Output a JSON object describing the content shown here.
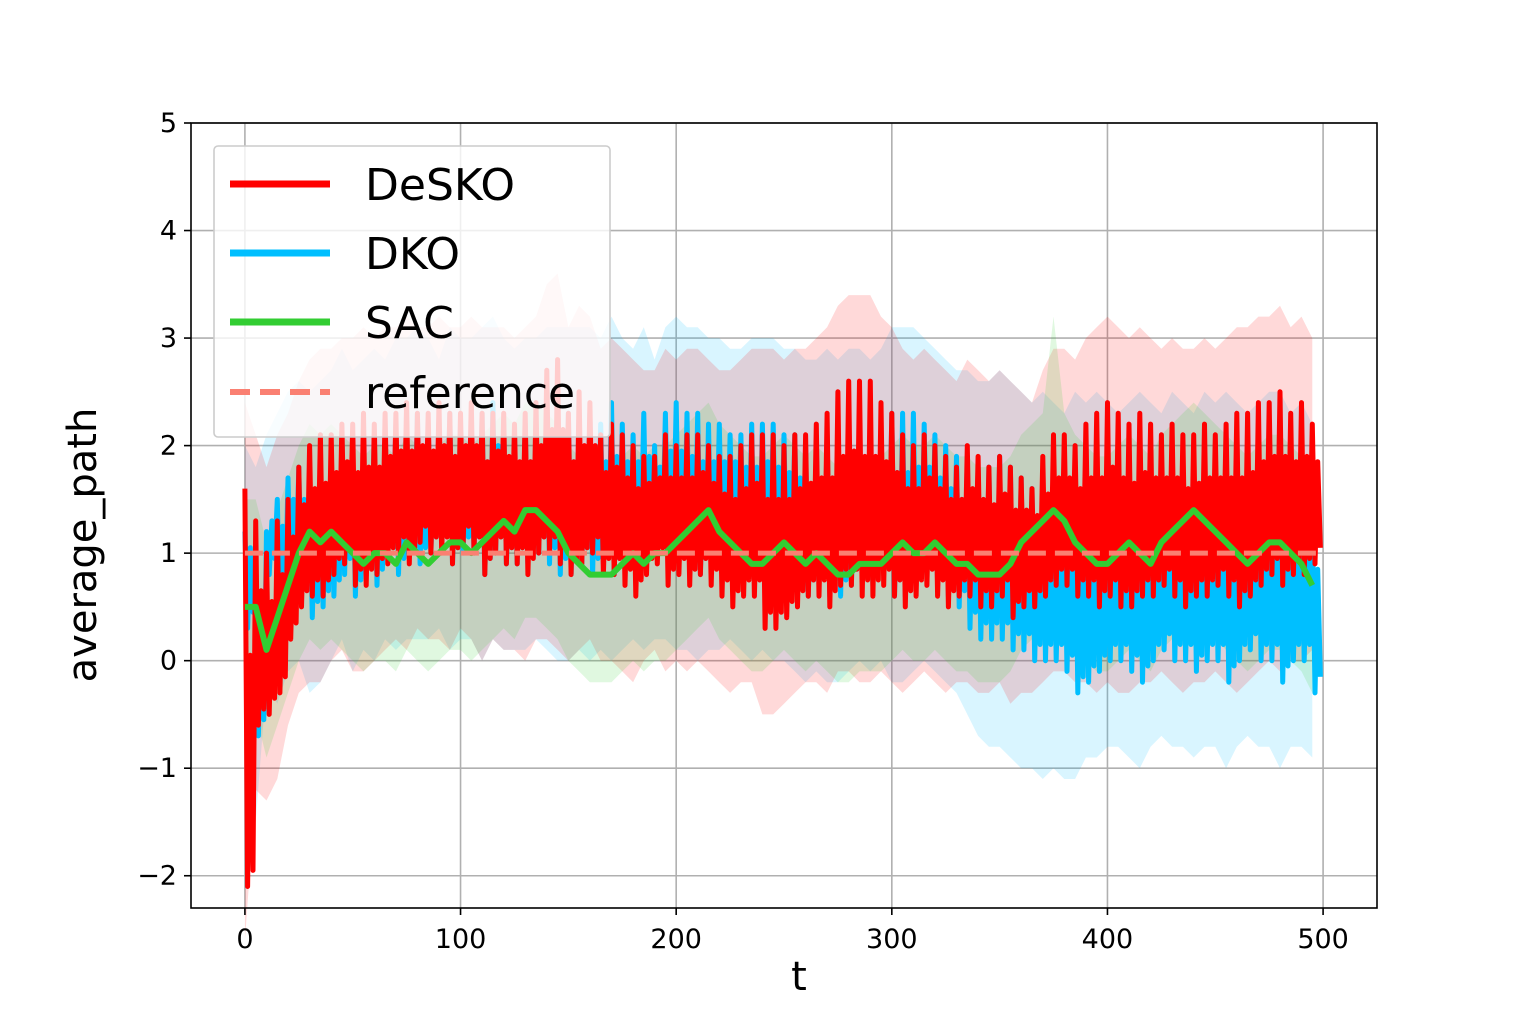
{
  "chart_data": {
    "type": "line",
    "xlabel": "t",
    "ylabel": "average_path",
    "xlim": [
      -25,
      525
    ],
    "ylim": [
      -2.3,
      5
    ],
    "xticks": [
      0,
      100,
      200,
      300,
      400,
      500
    ],
    "xtick_labels": [
      "0",
      "100",
      "200",
      "300",
      "400",
      "500"
    ],
    "yticks": [
      -2,
      -1,
      0,
      1,
      2,
      3,
      4,
      5
    ],
    "ytick_labels": [
      "−2",
      "−1",
      "0",
      "1",
      "2",
      "3",
      "4",
      "5"
    ],
    "grid": true,
    "legend_position": "top-left",
    "legend": [
      "DeSKO",
      "DKO",
      "SAC",
      "reference"
    ],
    "series": [
      {
        "name": "DKO",
        "color": "#00bfff",
        "x_step": 5,
        "mean_lo": [
          0.3,
          -0.7,
          0.8,
          0.4,
          0.7,
          0.6,
          0.4,
          0.5,
          0.6,
          0.8,
          0.6,
          0.9,
          0.7,
          1.0,
          0.8,
          1.0,
          0.9,
          1.0,
          1.1,
          0.9,
          1.0,
          1.0,
          0.8,
          1.0,
          0.9,
          0.9,
          0.9,
          1.0,
          0.9,
          0.8,
          0.8,
          0.9,
          0.8,
          0.9,
          0.8,
          0.9,
          1.0,
          0.9,
          1.0,
          1.0,
          0.9,
          0.9,
          0.8,
          0.9,
          0.9,
          1.0,
          0.9,
          0.8,
          0.9,
          0.8,
          0.8,
          0.7,
          0.6,
          0.7,
          0.6,
          0.6,
          0.7,
          0.8,
          0.7,
          0.8,
          0.6,
          0.6,
          0.7,
          0.8,
          0.7,
          0.6,
          0.5,
          0.3,
          0.2,
          0.2,
          0.2,
          0.1,
          0.1,
          0.0,
          0.0,
          0.0,
          -0.1,
          -0.3,
          -0.2,
          -0.1,
          0.0,
          0.0,
          -0.1,
          -0.2,
          0.0,
          0.1,
          0.0,
          0.0,
          -0.1,
          0.0,
          0.0,
          -0.2,
          0.0,
          0.1,
          0.0,
          0.0,
          -0.2,
          0.0,
          0.0,
          -0.3
        ],
        "mean_hi": [
          1.2,
          1.0,
          1.2,
          1.5,
          1.7,
          1.8,
          1.7,
          1.8,
          1.9,
          2.1,
          1.9,
          2.0,
          2.1,
          2.0,
          2.2,
          2.2,
          2.3,
          2.2,
          2.0,
          2.3,
          2.2,
          2.2,
          2.3,
          2.4,
          2.2,
          2.1,
          2.2,
          2.2,
          2.3,
          2.3,
          2.3,
          2.3,
          2.3,
          2.2,
          2.4,
          2.2,
          2.1,
          2.3,
          2.0,
          2.3,
          2.4,
          2.3,
          2.3,
          2.2,
          2.2,
          2.1,
          2.1,
          2.2,
          2.2,
          2.2,
          2.1,
          2.1,
          2.0,
          2.0,
          2.1,
          2.0,
          2.1,
          2.1,
          2.0,
          2.1,
          2.3,
          2.3,
          2.3,
          2.2,
          2.1,
          2.0,
          1.9,
          1.9,
          1.8,
          1.8,
          1.9,
          1.8,
          1.7,
          1.6,
          1.7,
          1.6,
          1.5,
          1.7,
          1.6,
          1.7,
          1.6,
          1.5,
          1.6,
          1.7,
          1.6,
          1.5,
          1.7,
          1.6,
          1.5,
          1.7,
          1.6,
          1.7,
          1.6,
          1.5,
          1.6,
          1.7,
          1.7,
          1.5,
          1.6,
          1.4
        ],
        "band_lo": [
          -0.8,
          -1.5,
          -0.2,
          -0.4,
          -0.1,
          0.0,
          -0.3,
          -0.2,
          0.0,
          0.2,
          -0.1,
          0.1,
          0.0,
          0.2,
          0.1,
          0.2,
          0.2,
          0.2,
          0.3,
          0.1,
          0.2,
          0.2,
          0.0,
          0.2,
          0.1,
          0.1,
          0.1,
          0.2,
          0.1,
          0.0,
          0.0,
          0.1,
          0.0,
          0.1,
          0.0,
          0.1,
          0.2,
          0.1,
          0.2,
          0.2,
          0.1,
          0.1,
          0.0,
          0.1,
          0.1,
          0.2,
          0.1,
          0.0,
          0.1,
          0.0,
          0.0,
          -0.1,
          -0.2,
          -0.1,
          -0.2,
          -0.2,
          -0.1,
          0.0,
          -0.1,
          0.0,
          -0.2,
          -0.2,
          -0.1,
          0.0,
          -0.1,
          -0.2,
          -0.3,
          -0.5,
          -0.7,
          -0.8,
          -0.8,
          -0.9,
          -1.0,
          -1.0,
          -1.1,
          -1.0,
          -1.1,
          -1.1,
          -0.9,
          -0.9,
          -0.8,
          -0.8,
          -0.9,
          -1.0,
          -0.8,
          -0.7,
          -0.8,
          -0.8,
          -0.9,
          -0.8,
          -0.8,
          -1.0,
          -0.8,
          -0.7,
          -0.8,
          -0.8,
          -1.0,
          -0.8,
          -0.8,
          -0.9
        ],
        "band_hi": [
          2.0,
          1.8,
          2.1,
          2.3,
          2.5,
          2.6,
          2.5,
          2.6,
          2.7,
          2.9,
          2.7,
          2.8,
          2.9,
          2.8,
          3.0,
          3.0,
          3.1,
          3.0,
          2.8,
          3.1,
          3.0,
          3.0,
          3.1,
          3.2,
          3.0,
          2.9,
          3.0,
          3.0,
          3.1,
          3.1,
          3.1,
          3.1,
          3.1,
          3.0,
          3.2,
          3.0,
          2.9,
          3.1,
          2.8,
          3.1,
          3.2,
          3.1,
          3.1,
          3.0,
          3.0,
          2.9,
          2.9,
          3.0,
          3.0,
          3.0,
          2.9,
          2.9,
          2.8,
          2.8,
          2.9,
          2.8,
          2.9,
          2.9,
          2.8,
          2.9,
          3.1,
          3.1,
          3.1,
          3.0,
          2.9,
          2.8,
          2.7,
          2.7,
          2.6,
          2.6,
          2.7,
          2.6,
          2.5,
          2.4,
          2.5,
          2.4,
          2.3,
          2.5,
          2.4,
          2.5,
          2.4,
          2.3,
          2.4,
          2.5,
          2.4,
          2.3,
          2.5,
          2.4,
          2.3,
          2.5,
          2.4,
          2.5,
          2.4,
          2.3,
          2.4,
          2.5,
          2.5,
          2.3,
          2.4,
          2.2
        ]
      },
      {
        "name": "DeSKO",
        "color": "#ff0000",
        "x_step": 5,
        "mean_lo": [
          -2.1,
          -0.6,
          -0.5,
          -0.3,
          0.2,
          0.5,
          0.6,
          0.6,
          0.8,
          0.9,
          0.7,
          0.7,
          0.8,
          0.9,
          1.0,
          0.9,
          1.1,
          1.0,
          1.0,
          0.9,
          1.1,
          1.0,
          0.8,
          1.0,
          0.9,
          0.9,
          0.8,
          1.0,
          1.0,
          0.9,
          0.8,
          0.9,
          1.0,
          0.8,
          0.8,
          0.7,
          0.6,
          0.8,
          0.9,
          0.7,
          0.8,
          0.7,
          0.8,
          0.7,
          0.6,
          0.5,
          0.6,
          0.6,
          0.3,
          0.3,
          0.4,
          0.5,
          0.6,
          0.6,
          0.5,
          0.7,
          0.7,
          0.6,
          0.6,
          0.7,
          0.6,
          0.5,
          0.6,
          0.7,
          0.6,
          0.5,
          0.6,
          0.6,
          0.5,
          0.5,
          0.6,
          0.4,
          0.5,
          0.5,
          0.6,
          0.7,
          0.7,
          0.6,
          0.6,
          0.5,
          0.6,
          0.5,
          0.5,
          0.6,
          0.6,
          0.7,
          0.6,
          0.5,
          0.6,
          0.6,
          0.7,
          0.6,
          0.5,
          0.6,
          0.7,
          0.8,
          0.7,
          0.8,
          0.8,
          0.9
        ],
        "mean_hi": [
          1.6,
          1.3,
          1.0,
          1.3,
          1.5,
          1.8,
          2.0,
          2.1,
          2.1,
          2.2,
          2.2,
          2.3,
          2.2,
          2.3,
          2.3,
          2.4,
          2.3,
          2.3,
          2.4,
          2.3,
          2.3,
          2.4,
          2.3,
          2.3,
          2.3,
          2.2,
          2.3,
          2.4,
          2.7,
          2.8,
          2.3,
          2.5,
          2.4,
          2.1,
          2.2,
          2.1,
          2.0,
          1.9,
          1.9,
          2.1,
          2.0,
          2.1,
          2.1,
          2.0,
          1.9,
          1.9,
          2.0,
          2.1,
          2.1,
          2.1,
          2.0,
          2.1,
          2.1,
          2.2,
          2.3,
          2.5,
          2.6,
          2.6,
          2.6,
          2.4,
          2.3,
          2.1,
          2.0,
          2.1,
          2.0,
          1.9,
          1.8,
          2.0,
          1.9,
          1.8,
          1.9,
          1.8,
          1.7,
          1.6,
          1.9,
          2.1,
          2.1,
          2.0,
          2.2,
          2.3,
          2.4,
          2.3,
          2.2,
          2.3,
          2.2,
          2.1,
          2.2,
          2.1,
          2.1,
          2.2,
          2.1,
          2.2,
          2.3,
          2.3,
          2.4,
          2.4,
          2.5,
          2.3,
          2.4,
          2.2
        ],
        "band_lo": [
          -2.6,
          -1.2,
          -1.3,
          -1.1,
          -0.6,
          -0.3,
          -0.2,
          -0.2,
          0.0,
          0.1,
          -0.1,
          -0.1,
          0.0,
          0.1,
          0.2,
          0.1,
          0.3,
          0.2,
          0.2,
          0.1,
          0.3,
          0.2,
          0.0,
          0.2,
          0.1,
          0.1,
          0.0,
          0.2,
          0.2,
          0.1,
          0.0,
          0.1,
          0.2,
          0.0,
          0.0,
          -0.1,
          -0.2,
          0.0,
          0.1,
          -0.1,
          0.0,
          -0.1,
          0.0,
          -0.1,
          -0.2,
          -0.3,
          -0.2,
          -0.2,
          -0.5,
          -0.5,
          -0.4,
          -0.3,
          -0.2,
          -0.2,
          -0.3,
          -0.1,
          -0.1,
          -0.2,
          -0.2,
          -0.1,
          -0.2,
          -0.3,
          -0.2,
          -0.1,
          -0.2,
          -0.3,
          -0.2,
          -0.2,
          -0.3,
          -0.3,
          -0.2,
          -0.4,
          -0.3,
          -0.3,
          -0.2,
          -0.1,
          -0.1,
          -0.2,
          -0.2,
          -0.3,
          -0.2,
          -0.3,
          -0.3,
          -0.2,
          -0.2,
          -0.1,
          -0.2,
          -0.3,
          -0.2,
          -0.2,
          -0.1,
          -0.2,
          -0.3,
          -0.2,
          -0.1,
          0.0,
          -0.1,
          0.0,
          0.0,
          0.1
        ],
        "band_hi": [
          2.4,
          2.1,
          1.8,
          2.1,
          2.3,
          2.6,
          2.8,
          2.9,
          2.9,
          3.0,
          3.0,
          3.1,
          3.0,
          3.1,
          3.1,
          3.2,
          3.1,
          3.1,
          3.2,
          3.1,
          3.1,
          3.2,
          3.1,
          3.1,
          3.1,
          3.0,
          3.1,
          3.2,
          3.5,
          3.6,
          3.1,
          3.3,
          3.2,
          2.9,
          3.0,
          2.9,
          2.8,
          2.7,
          2.7,
          2.9,
          2.8,
          2.9,
          2.9,
          2.8,
          2.7,
          2.7,
          2.8,
          2.9,
          2.9,
          2.9,
          2.8,
          2.9,
          2.9,
          3.0,
          3.1,
          3.3,
          3.4,
          3.4,
          3.4,
          3.2,
          3.1,
          2.9,
          2.8,
          2.9,
          2.8,
          2.7,
          2.6,
          2.8,
          2.7,
          2.6,
          2.7,
          2.6,
          2.5,
          2.4,
          2.7,
          2.9,
          2.9,
          2.8,
          3.0,
          3.1,
          3.2,
          3.1,
          3.0,
          3.1,
          3.0,
          2.9,
          3.0,
          2.9,
          2.9,
          3.0,
          2.9,
          3.0,
          3.1,
          3.1,
          3.2,
          3.2,
          3.3,
          3.1,
          3.2,
          3.0
        ]
      },
      {
        "name": "SAC",
        "color": "#32cd32",
        "x_step": 5,
        "values": [
          0.5,
          0.5,
          0.1,
          0.4,
          0.7,
          1.0,
          1.2,
          1.1,
          1.2,
          1.1,
          1.0,
          0.9,
          1.0,
          1.0,
          0.9,
          1.1,
          1.0,
          0.9,
          1.0,
          1.1,
          1.1,
          1.0,
          1.1,
          1.2,
          1.3,
          1.2,
          1.4,
          1.4,
          1.3,
          1.2,
          1.0,
          0.9,
          0.8,
          0.8,
          0.8,
          0.9,
          1.0,
          0.9,
          1.0,
          1.0,
          1.1,
          1.2,
          1.3,
          1.4,
          1.2,
          1.1,
          1.0,
          0.9,
          0.9,
          1.0,
          1.1,
          1.0,
          0.9,
          1.0,
          0.9,
          0.8,
          0.8,
          0.9,
          0.9,
          0.9,
          1.0,
          1.1,
          1.0,
          1.0,
          1.1,
          1.0,
          0.9,
          0.9,
          0.8,
          0.8,
          0.8,
          0.9,
          1.1,
          1.2,
          1.3,
          1.4,
          1.3,
          1.1,
          1.0,
          0.9,
          0.9,
          1.0,
          1.1,
          1.0,
          0.9,
          1.1,
          1.2,
          1.3,
          1.4,
          1.3,
          1.2,
          1.1,
          1.0,
          0.9,
          1.0,
          1.1,
          1.1,
          1.0,
          0.9,
          0.7
        ],
        "spread": 0.25,
        "band_lo": [
          -0.5,
          -0.5,
          -0.9,
          -0.6,
          -0.3,
          0.0,
          0.2,
          0.1,
          0.2,
          0.1,
          0.0,
          -0.1,
          0.0,
          0.0,
          -0.1,
          0.1,
          0.0,
          -0.1,
          0.0,
          0.1,
          0.1,
          0.0,
          0.1,
          0.2,
          0.3,
          0.2,
          0.4,
          0.4,
          0.3,
          0.2,
          0.0,
          -0.1,
          -0.2,
          -0.2,
          -0.2,
          -0.1,
          0.0,
          -0.1,
          0.0,
          0.0,
          0.1,
          0.2,
          0.3,
          0.4,
          0.2,
          0.1,
          0.0,
          -0.1,
          -0.1,
          0.0,
          0.1,
          0.0,
          -0.1,
          0.0,
          -0.1,
          -0.2,
          -0.2,
          -0.1,
          -0.1,
          -0.1,
          0.0,
          0.1,
          0.0,
          0.0,
          0.1,
          0.0,
          -0.1,
          -0.1,
          -0.2,
          -0.2,
          -0.2,
          -0.1,
          0.1,
          0.2,
          0.3,
          0.4,
          0.3,
          0.1,
          0.0,
          -0.1,
          -0.1,
          0.0,
          0.1,
          0.0,
          -0.1,
          0.1,
          0.2,
          0.3,
          0.4,
          0.3,
          0.2,
          0.1,
          0.0,
          -0.1,
          0.0,
          0.1,
          0.1,
          0.0,
          -0.1,
          -0.3
        ],
        "band_hi": [
          1.5,
          1.5,
          1.1,
          1.4,
          1.7,
          2.0,
          2.2,
          2.1,
          2.2,
          2.1,
          2.0,
          1.9,
          2.0,
          2.0,
          1.9,
          2.1,
          2.0,
          1.9,
          2.0,
          2.1,
          2.1,
          2.0,
          2.1,
          2.2,
          2.3,
          2.2,
          2.4,
          2.4,
          2.3,
          2.2,
          2.0,
          1.9,
          1.8,
          1.8,
          1.8,
          1.9,
          2.0,
          1.9,
          2.0,
          2.0,
          2.1,
          2.2,
          2.3,
          2.4,
          2.2,
          2.1,
          2.0,
          1.9,
          1.9,
          2.0,
          2.1,
          2.0,
          1.9,
          2.0,
          1.9,
          1.8,
          1.8,
          1.9,
          1.9,
          1.9,
          2.0,
          2.1,
          2.0,
          2.0,
          2.1,
          2.0,
          1.9,
          1.9,
          1.8,
          1.8,
          1.8,
          1.9,
          2.1,
          2.2,
          2.3,
          3.2,
          2.3,
          2.1,
          2.0,
          1.9,
          1.9,
          2.0,
          2.1,
          2.0,
          1.9,
          2.1,
          2.2,
          2.3,
          2.4,
          2.3,
          2.2,
          2.1,
          2.0,
          1.9,
          2.0,
          2.1,
          2.1,
          2.0,
          1.9,
          1.7
        ]
      },
      {
        "name": "reference",
        "color": "#fa8072",
        "style": "dashed",
        "x": [
          0,
          500
        ],
        "values": [
          1,
          1
        ]
      }
    ]
  }
}
